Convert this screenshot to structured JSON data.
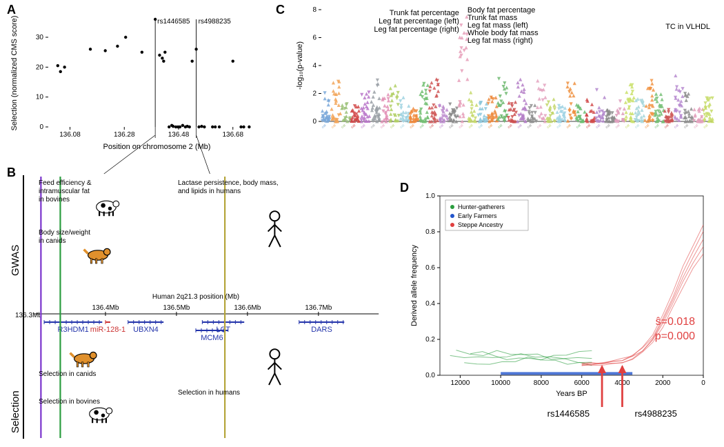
{
  "panelA": {
    "label": "A",
    "x_label": "Position on chromosome 2 (Mb)",
    "y_label": "Selection (normalized CMS score)",
    "xlim": [
      136.0,
      136.8
    ],
    "ylim": [
      0,
      36
    ],
    "x_ticks": [
      136.08,
      136.28,
      136.48,
      136.68
    ],
    "y_ticks": [
      0,
      10,
      20,
      30
    ],
    "snp_labels": [
      {
        "id": "rs1446585",
        "x": 136.394
      },
      {
        "id": "rs4988235",
        "x": 136.545
      }
    ],
    "points": [
      [
        136.035,
        20.5
      ],
      [
        136.045,
        18.5
      ],
      [
        136.06,
        20.0
      ],
      [
        136.155,
        26.0
      ],
      [
        136.21,
        25.5
      ],
      [
        136.255,
        27.0
      ],
      [
        136.285,
        30.0
      ],
      [
        136.345,
        25.0
      ],
      [
        136.394,
        36.0
      ],
      [
        136.41,
        24.0
      ],
      [
        136.42,
        23.0
      ],
      [
        136.425,
        22.0
      ],
      [
        136.43,
        25.0
      ],
      [
        136.445,
        0.0
      ],
      [
        136.455,
        0.5
      ],
      [
        136.46,
        0.2
      ],
      [
        136.47,
        0.0
      ],
      [
        136.478,
        0.0
      ],
      [
        136.485,
        0.0
      ],
      [
        136.495,
        0.5
      ],
      [
        136.505,
        0.0
      ],
      [
        136.512,
        0.2
      ],
      [
        136.52,
        0.0
      ],
      [
        136.53,
        22.0
      ],
      [
        136.545,
        26.0
      ],
      [
        136.555,
        0.0
      ],
      [
        136.565,
        0.2
      ],
      [
        136.575,
        0.0
      ],
      [
        136.605,
        0.0
      ],
      [
        136.615,
        0.0
      ],
      [
        136.63,
        0.0
      ],
      [
        136.68,
        22.0
      ],
      [
        136.71,
        0.0
      ],
      [
        136.72,
        0.0
      ],
      [
        136.74,
        0.0
      ]
    ],
    "point_color": "#000000",
    "point_radius": 2.2,
    "connector_targets": [
      0.21,
      0.47
    ]
  },
  "panelB": {
    "label": "B",
    "row_top": "GWAS",
    "row_bottom": "Selection",
    "track_label": "Human 2q21.3 position (Mb)",
    "track_start_mb": "136.3Mb",
    "track_ticks": [
      "136.4Mb",
      "136.5Mb",
      "136.6Mb",
      "136.7Mb"
    ],
    "genes": [
      {
        "name": "R3HDM1",
        "start": 0.03,
        "end": 0.21,
        "color": "#2233aa"
      },
      {
        "name": "miR-128-1",
        "start": 0.22,
        "end": 0.235,
        "color": "#cc3333"
      },
      {
        "name": "UBXN4",
        "start": 0.29,
        "end": 0.4,
        "color": "#2233aa"
      },
      {
        "name": "LCT",
        "start": 0.52,
        "end": 0.65,
        "color": "#2233aa"
      },
      {
        "name": "MCM6",
        "start": 0.5,
        "end": 0.6,
        "color": "#2233aa"
      },
      {
        "name": "DARS",
        "start": 0.82,
        "end": 0.96,
        "color": "#2233aa"
      }
    ],
    "annotations": {
      "bovine_gwas": "Feed efficiency &\nintramuscular fat\nin bovines",
      "canid_gwas": "Body size/weight\nin canids",
      "human_gwas": "Lactase persistence, body mass,\nand lipids in humans",
      "canid_sel": "Selection in canids",
      "bovine_sel": "Selection in bovines",
      "human_sel": "Selection in humans"
    },
    "line_colors": {
      "bovine": "#7a33cc",
      "canid": "#2a9d3e",
      "human": "#b5a53a"
    }
  },
  "panelC": {
    "label": "C",
    "y_label": "-log₁₀(p-value)",
    "ylim": [
      0,
      8
    ],
    "y_ticks": [
      0,
      2,
      4,
      6,
      8
    ],
    "top_annotations_left": [
      "Trunk fat percentage",
      "Leg fat percentage (left)",
      "Leg fat percentage (right)"
    ],
    "top_annotations_right": [
      "Body fat percentage",
      "Trunk fat mass",
      "Leg fat mass (left)",
      "Whole body fat mass",
      "Leg fat mass (right)"
    ],
    "right_annotation": "TC in VLHDL",
    "category_colors": [
      "#7aa8d9",
      "#f2a65a",
      "#9cc27a",
      "#d14747",
      "#b874c9",
      "#9aa0a6",
      "#e28fb5",
      "#b0cf63",
      "#9fd2e0",
      "#f08a3c",
      "#72bf72",
      "#d05858",
      "#bb88cc",
      "#888888",
      "#e69db8",
      "#c5d96b",
      "#8ec8dc",
      "#ed8b3e",
      "#6fb870",
      "#cc5050",
      "#b580c8",
      "#909090",
      "#e4a3c0",
      "#c2d66a",
      "#a0d4e4",
      "#ee9040",
      "#6dbd72",
      "#d24c4c",
      "#b387cc",
      "#8b8b8b",
      "#de9ebc",
      "#cae06a",
      "#a6d6db",
      "#f19444",
      "#76c076",
      "#cd5555",
      "#b78bd0",
      "#8f8f8f",
      "#e3a1bd",
      "#c7dc69"
    ],
    "n_categories": 40,
    "peak_category_index": 14,
    "peak_height": 7.6,
    "baseline_max": 2.6
  },
  "panelD": {
    "label": "D",
    "x_label": "Years BP",
    "y_label": "Derived allele frequency",
    "xlim": [
      13000,
      0
    ],
    "ylim": [
      0.0,
      1.0
    ],
    "x_ticks": [
      12000,
      10000,
      8000,
      6000,
      4000,
      2000,
      0
    ],
    "y_ticks": [
      0.0,
      0.2,
      0.4,
      0.6,
      0.8,
      1.0
    ],
    "legend": [
      {
        "label": "Hunter-gatherers",
        "color": "#2a9d3e"
      },
      {
        "label": "Early Farmers",
        "color": "#2255cc"
      },
      {
        "label": "Steppe Ancestry",
        "color": "#e04040"
      }
    ],
    "stats": {
      "shat": "ŝ=0.018",
      "p": "p=0.000",
      "color": "#e04040"
    },
    "snp_arrows": [
      {
        "label": "rs1446585",
        "x_bp": 5000
      },
      {
        "label": "rs4988235",
        "x_bp": 4000
      }
    ],
    "hg_lines": [
      {
        "start_bp": 12500,
        "end_bp": 5500,
        "y0": 0.11,
        "y1": 0.1
      },
      {
        "start_bp": 12200,
        "end_bp": 5500,
        "y0": 0.14,
        "y1": 0.08
      },
      {
        "start_bp": 11800,
        "end_bp": 5500,
        "y0": 0.07,
        "y1": 0.12
      },
      {
        "start_bp": 11500,
        "end_bp": 5500,
        "y0": 0.12,
        "y1": 0.06
      }
    ],
    "ef_line": {
      "start_bp": 10000,
      "end_bp": 3500,
      "y": 0.01
    },
    "steppe_curve": [
      [
        6000,
        0.06
      ],
      [
        5500,
        0.06
      ],
      [
        5000,
        0.065
      ],
      [
        4500,
        0.07
      ],
      [
        4000,
        0.08
      ],
      [
        3500,
        0.1
      ],
      [
        3000,
        0.14
      ],
      [
        2500,
        0.2
      ],
      [
        2000,
        0.3
      ],
      [
        1500,
        0.42
      ],
      [
        1000,
        0.55
      ],
      [
        500,
        0.66
      ],
      [
        0,
        0.76
      ]
    ]
  }
}
